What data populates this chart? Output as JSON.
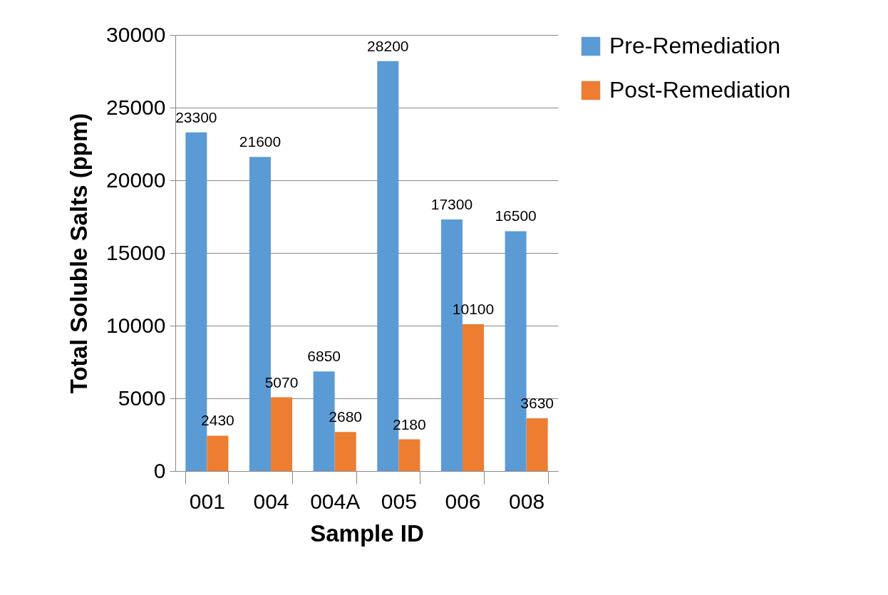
{
  "chart_data": {
    "type": "bar",
    "xlabel": "Sample ID",
    "ylabel": "Total Soluble Salts (ppm)",
    "categories": [
      "001",
      "004",
      "004A",
      "005",
      "006",
      "008"
    ],
    "series": [
      {
        "name": "Pre-Remediation",
        "color": "#5b9bd5",
        "values": [
          23300,
          21600,
          6850,
          28200,
          17300,
          16500
        ]
      },
      {
        "name": "Post-Remediation",
        "color": "#ed7d31",
        "values": [
          2430,
          5070,
          2680,
          2180,
          10100,
          3630
        ]
      }
    ],
    "ylim": [
      0,
      30000
    ],
    "yticks": [
      0,
      5000,
      10000,
      15000,
      20000,
      25000,
      30000
    ],
    "grid": "y",
    "legend": "right",
    "data_labels": true
  }
}
